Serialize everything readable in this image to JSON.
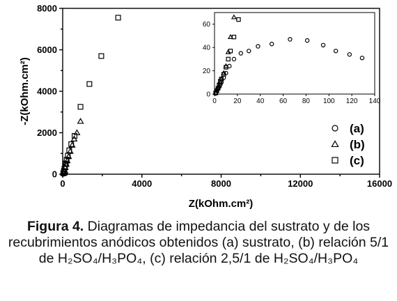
{
  "chart_data": [
    {
      "type": "scatter",
      "xlabel": "Z(kOhm.cm²)",
      "ylabel": "-Z(kOhm.cm²)",
      "xlim": [
        0,
        16000
      ],
      "ylim": [
        0,
        8000
      ],
      "xticks": [
        "0",
        "4000",
        "8000",
        "12000",
        "16000"
      ],
      "yticks": [
        "0",
        "2000",
        "4000",
        "6000",
        "8000"
      ],
      "legend_position": "bottom-right",
      "series": [
        {
          "name": "(a)",
          "marker": "circle",
          "x": [
            20,
            30,
            40,
            55,
            70,
            90,
            110,
            130
          ],
          "y": [
            15,
            25,
            33,
            40,
            45,
            47,
            44,
            40
          ]
        },
        {
          "name": "(b)",
          "marker": "triangle",
          "x": [
            40,
            80,
            130,
            180,
            230,
            300,
            380,
            480,
            580,
            720,
            900
          ],
          "y": [
            60,
            150,
            320,
            480,
            650,
            850,
            1100,
            1400,
            1700,
            2000,
            2550
          ]
        },
        {
          "name": "(c)",
          "marker": "square",
          "x": [
            30,
            60,
            90,
            120,
            160,
            200,
            260,
            330,
            430,
            600,
            900,
            1350,
            1950,
            2800
          ],
          "y": [
            50,
            150,
            260,
            380,
            520,
            700,
            900,
            1150,
            1450,
            1850,
            3250,
            4350,
            5700,
            7550
          ]
        }
      ]
    },
    {
      "type": "scatter",
      "inset": true,
      "xlim": [
        0,
        140
      ],
      "ylim": [
        0,
        70
      ],
      "xticks": [
        "0",
        "20",
        "40",
        "60",
        "80",
        "100",
        "120",
        "140"
      ],
      "yticks": [
        "0",
        "20",
        "40",
        "60"
      ],
      "series": [
        {
          "name": "(a)",
          "marker": "circle",
          "x": [
            1,
            1.5,
            2,
            3,
            4,
            5,
            6,
            8,
            10,
            13,
            17,
            23,
            30,
            38,
            50,
            66,
            81,
            95,
            106,
            118,
            129
          ],
          "y": [
            0.5,
            1.5,
            3,
            4.5,
            6,
            8,
            10,
            14,
            18,
            24,
            30,
            35,
            37,
            41,
            43,
            47,
            46,
            42,
            37,
            34,
            31
          ]
        },
        {
          "name": "(b)",
          "marker": "triangle",
          "x": [
            1,
            2,
            3,
            4,
            5,
            6,
            8,
            10,
            12,
            14,
            17
          ],
          "y": [
            1,
            3,
            5,
            7,
            10,
            13,
            18,
            24,
            36,
            49,
            66
          ]
        },
        {
          "name": "(c)",
          "marker": "square",
          "x": [
            1,
            2,
            3,
            4,
            5,
            6,
            8,
            10,
            12,
            14,
            17,
            21
          ],
          "y": [
            1,
            3,
            5,
            8,
            11,
            13,
            17,
            23,
            30,
            37,
            49,
            64
          ]
        }
      ]
    }
  ],
  "caption": {
    "label": "Figura 4.",
    "text": "Diagramas de impedancia del sustrato y de los recubrimientos anódicos obtenidos (a) sustrato, (b) relación 5/1 de H₂SO₄/H₃PO₄, (c) relación 2,5/1 de H₂SO₄/H₃PO₄"
  }
}
